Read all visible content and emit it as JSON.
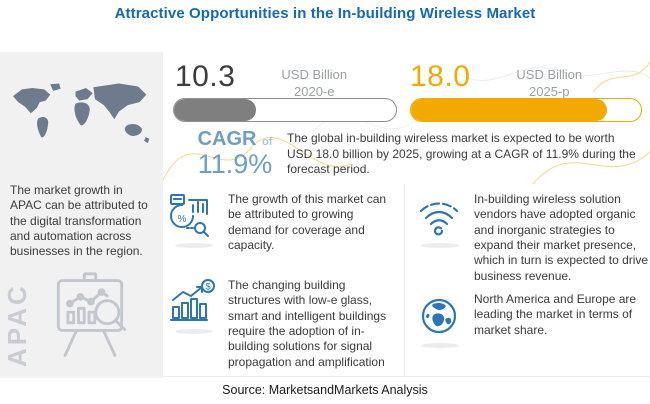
{
  "title": "Attractive Opportunities in the In-building Wireless Market",
  "source": "Source: MarketsandMarkets Analysis",
  "colors": {
    "title_blue": "#1569b3",
    "amber": "#f2a900",
    "gray_fill": "#7f7f7f",
    "steel_blue": "#6d9ec9",
    "icon_blue": "#2e75b6",
    "map_slate": "#6d7b8d"
  },
  "metrics": {
    "current": {
      "value": "10.3",
      "unit": "USD Billion",
      "period": "2020-e",
      "fill_pct": 37,
      "fill_color": "#7f7f7f"
    },
    "forecast": {
      "value": "18.0",
      "unit": "USD Billion",
      "period": "2025-p",
      "fill_pct": 85,
      "fill_color": "#f2a900"
    }
  },
  "cagr": {
    "label": "CAGR",
    "connector": "of",
    "value": "11.9%",
    "description": "The global in-building wireless market is expected to be worth USD 18.0 billion by 2025, growing at a CAGR of 11.9% during the forecast period."
  },
  "sidebar": {
    "region": "APAC",
    "note": "The market growth in APAC can be attributed to the digital transformation and automation across businesses in the region.",
    "map_icon": "world-map",
    "easel_icon": "presentation-chart-magnifier-icon"
  },
  "insights": {
    "middle": [
      {
        "icon": "market-analytics-magnifier-icon",
        "text": "The growth of this market can be attributed to growing demand for coverage and capacity."
      },
      {
        "icon": "growth-bars-dollar-icon",
        "text": "The changing building structures with low-e glass, smart and intelligent buildings require the adoption of in-building solutions for signal propagation and amplification"
      }
    ],
    "right": [
      {
        "icon": "wifi-icon",
        "text": "In-building wireless solution vendors have adopted organic and inorganic strategies to expand their market presence, which in turn is expected to drive business revenue."
      },
      {
        "icon": "globe-icon",
        "text": "North America and Europe are leading the market in terms of market share."
      }
    ]
  },
  "chart_data": {
    "type": "bar",
    "title": "In-building wireless market size",
    "categories": [
      "2020-e",
      "2025-p"
    ],
    "values": [
      10.3,
      18.0
    ],
    "unit": "USD Billion",
    "cagr_percent": 11.9,
    "bar_colors": [
      "#7f7f7f",
      "#f2a900"
    ]
  }
}
